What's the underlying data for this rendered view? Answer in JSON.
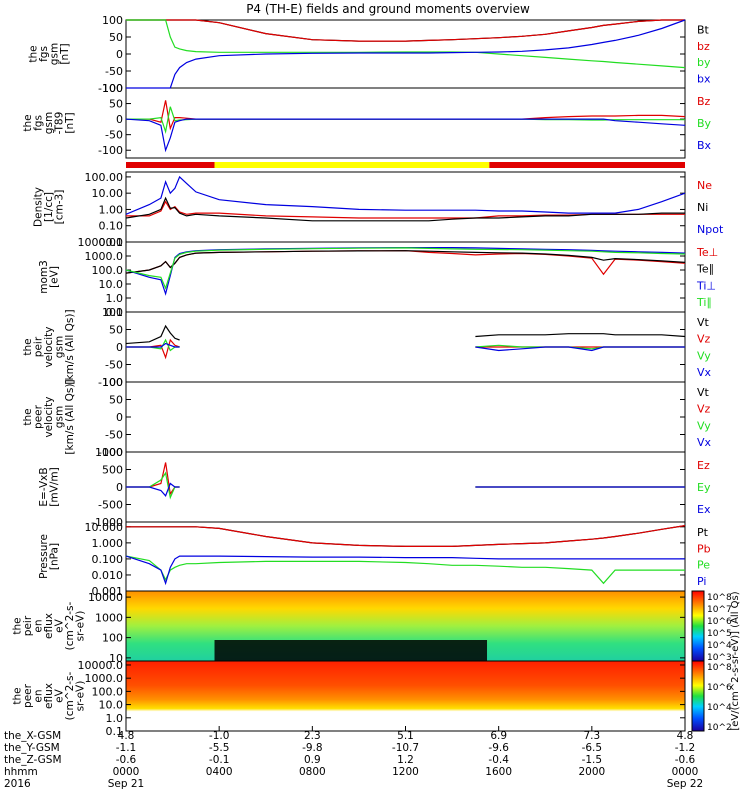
{
  "title": "P4 (TH-E) fields and ground moments overview",
  "colors": {
    "black": "#000000",
    "red": "#e00000",
    "green": "#22dd22",
    "blue": "#0000e0",
    "yellow": "#ffff00"
  },
  "panels": [
    {
      "id": "fgs-gsm",
      "ylabel": [
        "the",
        "fgs",
        "gsm",
        "[nT]"
      ],
      "ytick_labels": [
        "100",
        "50",
        "0",
        "-50",
        "-100"
      ],
      "legend": [
        {
          "text": "Bt",
          "color": "black"
        },
        {
          "text": "bz",
          "color": "red"
        },
        {
          "text": "by",
          "color": "green"
        },
        {
          "text": "bx",
          "color": "blue"
        }
      ]
    },
    {
      "id": "fgs-dgsm",
      "ylabel": [
        "the",
        "fgs",
        "gsm",
        "-T89",
        "[nT]"
      ],
      "ytick_labels": [
        "100",
        "50",
        "0",
        "-50",
        "-100"
      ],
      "legend": [
        {
          "text": "Bz",
          "color": "red"
        },
        {
          "text": "By",
          "color": "green"
        },
        {
          "text": "Bx",
          "color": "blue"
        }
      ]
    },
    {
      "id": "density",
      "ylabel": [
        "Density",
        "[1/cc]",
        "[cm-3]"
      ],
      "ytick_labels": [
        "100.00",
        "10.00",
        "1.00",
        "0.10",
        "0.01"
      ],
      "legend": [
        {
          "text": "Ne",
          "color": "red"
        },
        {
          "text": "Ni",
          "color": "black"
        },
        {
          "text": "Npot",
          "color": "blue"
        }
      ]
    },
    {
      "id": "temperature",
      "ylabel": [
        "mom3",
        "[eV]"
      ],
      "ytick_labels": [
        "10000.0",
        "1000.0",
        "100.0",
        "10.0",
        "1.0",
        "0.1"
      ],
      "legend": [
        {
          "text": "Te⊥",
          "color": "red"
        },
        {
          "text": "Te∥",
          "color": "black"
        },
        {
          "text": "Ti⊥",
          "color": "blue"
        },
        {
          "text": "Ti∥",
          "color": "green"
        }
      ]
    },
    {
      "id": "peir-velocity",
      "ylabel": [
        "the",
        "peir",
        "velocity",
        "gsm",
        "[km/s (All Qs)]"
      ],
      "ytick_labels": [
        "100",
        "50",
        "0",
        "-50",
        "-100"
      ],
      "legend": [
        {
          "text": "Vt",
          "color": "black"
        },
        {
          "text": "Vz",
          "color": "red"
        },
        {
          "text": "Vy",
          "color": "green"
        },
        {
          "text": "Vx",
          "color": "blue"
        }
      ]
    },
    {
      "id": "peer-velocity",
      "ylabel": [
        "the",
        "peer",
        "velocity",
        "gsm",
        "[km/s (All Qs)]"
      ],
      "ytick_labels": [
        "100",
        "50",
        "0",
        "-50",
        "-100"
      ],
      "legend": [
        {
          "text": "Vt",
          "color": "black"
        },
        {
          "text": "Vz",
          "color": "red"
        },
        {
          "text": "Vy",
          "color": "green"
        },
        {
          "text": "Vx",
          "color": "blue"
        }
      ]
    },
    {
      "id": "efield",
      "ylabel": [
        "E=-VxB",
        "[mV/m]"
      ],
      "ytick_labels": [
        "1000",
        "500",
        "0",
        "-500",
        "-1000"
      ],
      "legend": [
        {
          "text": "Ez",
          "color": "red"
        },
        {
          "text": "Ey",
          "color": "green"
        },
        {
          "text": "Ex",
          "color": "blue"
        }
      ]
    },
    {
      "id": "pressure",
      "ylabel": [
        "Pressure",
        "[nPa]"
      ],
      "ytick_labels": [
        "10.000",
        "1.000",
        "0.100",
        "0.010",
        "0.001"
      ],
      "legend": [
        {
          "text": "Pt",
          "color": "black"
        },
        {
          "text": "Pb",
          "color": "red"
        },
        {
          "text": "Pe",
          "color": "green"
        },
        {
          "text": "Pi",
          "color": "blue"
        }
      ]
    },
    {
      "id": "peir-spec",
      "ylabel": [
        "the",
        "peir",
        "en",
        "eflux",
        "eV",
        "(cm^2-s-",
        "sr-eV)"
      ],
      "ytick_labels": [
        "10000",
        "1000",
        "100",
        "10"
      ]
    },
    {
      "id": "peer-spec",
      "ylabel": [
        "the",
        "peer",
        "en",
        "eflux",
        "eV",
        "(cm^2-s-",
        "sr-eV)"
      ],
      "ytick_labels": [
        "10000.0",
        "1000.0",
        "100.0",
        "10.0",
        "1.0",
        "0.1"
      ]
    }
  ],
  "colorbars": [
    {
      "ticks": [
        "10^8",
        "10^7",
        "10^6",
        "10^5",
        "10^4",
        "10^3"
      ]
    },
    {
      "ticks": [
        "10^8",
        "10^6",
        "10^4",
        "10^2"
      ]
    }
  ],
  "colorbar_label": "[eV/(cm^2-s-sr-eV)] (All Qs)",
  "xaxis": {
    "row_labels": [
      "the_X-GSM",
      "the_Y-GSM",
      "the_Z-GSM",
      "hhmm",
      "2016"
    ],
    "columns": [
      {
        "x": "4.8",
        "y": "-1.1",
        "z": "-0.6",
        "t": "0000",
        "d": "Sep 21"
      },
      {
        "x": "-1.0",
        "y": "-5.5",
        "z": "-0.1",
        "t": "0400",
        "d": ""
      },
      {
        "x": "2.3",
        "y": "-9.8",
        "z": "0.9",
        "t": "0800",
        "d": ""
      },
      {
        "x": "5.1",
        "y": "-10.7",
        "z": "1.2",
        "t": "1200",
        "d": ""
      },
      {
        "x": "6.9",
        "y": "-9.6",
        "z": "-0.4",
        "t": "1600",
        "d": ""
      },
      {
        "x": "7.3",
        "y": "-6.5",
        "z": "-1.5",
        "t": "2000",
        "d": ""
      },
      {
        "x": "4.8",
        "y": "-1.2",
        "z": "-0.6",
        "t": "0000",
        "d": "Sep 22"
      }
    ]
  },
  "chart_data": {
    "type": "line",
    "x_hours": [
      0,
      1,
      1.5,
      1.7,
      1.9,
      2.1,
      2.3,
      2.6,
      3,
      4,
      6,
      8,
      10,
      12,
      13,
      14,
      15,
      16,
      17,
      18,
      19,
      20,
      20.5,
      21,
      22,
      23,
      24
    ],
    "series": [
      {
        "panel": "fgs-gsm",
        "name": "Bt",
        "color": "black",
        "y": [
          100,
          100,
          100,
          100,
          100,
          100,
          100,
          100,
          100,
          92,
          60,
          42,
          38,
          38,
          40,
          42,
          45,
          48,
          52,
          58,
          68,
          78,
          84,
          88,
          96,
          100,
          100
        ]
      },
      {
        "panel": "fgs-gsm",
        "name": "bz",
        "color": "red",
        "y": [
          100,
          100,
          100,
          100,
          100,
          100,
          100,
          100,
          100,
          92,
          60,
          42,
          38,
          38,
          40,
          42,
          45,
          48,
          52,
          58,
          68,
          78,
          84,
          88,
          96,
          100,
          100
        ]
      },
      {
        "panel": "fgs-gsm",
        "name": "by",
        "color": "green",
        "y": [
          100,
          100,
          100,
          100,
          50,
          20,
          15,
          10,
          7,
          5,
          5,
          5,
          5,
          6,
          6,
          6,
          5,
          0,
          -5,
          -10,
          -15,
          -20,
          -22,
          -25,
          -30,
          -35,
          -40
        ]
      },
      {
        "panel": "fgs-gsm",
        "name": "bx",
        "color": "blue",
        "y": [
          -100,
          -100,
          -100,
          -100,
          -100,
          -60,
          -40,
          -25,
          -15,
          -5,
          0,
          2,
          3,
          3,
          3,
          4,
          5,
          6,
          8,
          12,
          18,
          28,
          34,
          40,
          55,
          75,
          100
        ]
      },
      {
        "panel": "fgs-dgsm",
        "name": "Bz",
        "color": "red",
        "y": [
          0,
          0,
          -10,
          60,
          -30,
          5,
          5,
          3,
          0,
          0,
          0,
          0,
          0,
          0,
          0,
          0,
          0,
          0,
          0,
          5,
          8,
          10,
          10,
          10,
          12,
          12,
          8
        ]
      },
      {
        "panel": "fgs-dgsm",
        "name": "By",
        "color": "green",
        "y": [
          0,
          0,
          5,
          -40,
          40,
          -5,
          -3,
          -2,
          0,
          0,
          0,
          0,
          0,
          0,
          0,
          0,
          0,
          0,
          0,
          -2,
          -2,
          -3,
          -3,
          -2,
          -2,
          -2,
          -2
        ]
      },
      {
        "panel": "fgs-dgsm",
        "name": "Bx",
        "color": "blue",
        "y": [
          0,
          -5,
          -20,
          -100,
          -60,
          -10,
          -5,
          0,
          0,
          0,
          0,
          0,
          0,
          0,
          0,
          0,
          0,
          0,
          0,
          0,
          0,
          0,
          0,
          -5,
          -10,
          -15,
          -20
        ]
      },
      {
        "panel": "density",
        "name": "Ne",
        "color": "red",
        "y": [
          0.4,
          0.4,
          0.8,
          3,
          1,
          1.5,
          0.7,
          0.5,
          0.6,
          0.6,
          0.4,
          0.35,
          0.3,
          0.3,
          0.3,
          0.3,
          0.3,
          0.4,
          0.4,
          0.45,
          0.45,
          0.5,
          0.5,
          0.5,
          0.5,
          0.5,
          0.5
        ]
      },
      {
        "panel": "density",
        "name": "Ni",
        "color": "black",
        "y": [
          0.3,
          0.5,
          1,
          5,
          1.2,
          1.3,
          0.6,
          0.4,
          0.5,
          0.4,
          0.3,
          0.2,
          0.2,
          0.2,
          0.2,
          0.25,
          0.3,
          0.3,
          0.35,
          0.4,
          0.4,
          0.5,
          0.5,
          0.5,
          0.5,
          0.6,
          0.6
        ]
      },
      {
        "panel": "density",
        "name": "Npot",
        "color": "blue",
        "y": [
          0.5,
          2,
          5,
          50,
          10,
          20,
          100,
          40,
          12,
          4,
          2,
          1.5,
          1,
          0.9,
          0.9,
          0.9,
          0.9,
          0.8,
          0.8,
          0.7,
          0.6,
          0.6,
          0.6,
          0.6,
          1,
          3,
          10
        ]
      },
      {
        "panel": "temperature",
        "name": "Te⊥",
        "color": "red",
        "y": [
          60,
          100,
          200,
          400,
          150,
          300,
          800,
          1200,
          1600,
          1800,
          2000,
          2200,
          2300,
          2400,
          1800,
          1500,
          1200,
          1400,
          1500,
          1300,
          1000,
          700,
          50,
          600,
          500,
          400,
          300
        ]
      },
      {
        "panel": "temperature",
        "name": "Te∥",
        "color": "black",
        "y": [
          60,
          100,
          200,
          400,
          150,
          300,
          800,
          1200,
          1600,
          1800,
          2000,
          2200,
          2300,
          2400,
          2200,
          2000,
          1800,
          1700,
          1600,
          1400,
          1100,
          800,
          500,
          650,
          550,
          450,
          350
        ]
      },
      {
        "panel": "temperature",
        "name": "Ti⊥",
        "color": "blue",
        "y": [
          100,
          30,
          20,
          2,
          40,
          800,
          1500,
          2000,
          2400,
          2800,
          3200,
          3500,
          3800,
          4000,
          4000,
          4000,
          3800,
          3500,
          3200,
          3000,
          2800,
          2500,
          2300,
          2200,
          2000,
          1800,
          1600
        ]
      },
      {
        "panel": "temperature",
        "name": "Ti∥",
        "color": "green",
        "y": [
          100,
          40,
          30,
          5,
          60,
          700,
          1300,
          1800,
          2200,
          2600,
          3000,
          3300,
          3600,
          3800,
          3500,
          3200,
          3000,
          2900,
          2800,
          2600,
          2400,
          2200,
          2000,
          1800,
          1700,
          1500,
          1400
        ]
      },
      {
        "panel": "peir-velocity",
        "name": "Vt",
        "color": "black",
        "y": [
          10,
          15,
          30,
          60,
          40,
          25,
          20,
          null,
          null,
          null,
          null,
          null,
          null,
          null,
          null,
          null,
          30,
          35,
          35,
          35,
          38,
          38,
          38,
          35,
          35,
          35,
          30
        ]
      },
      {
        "panel": "peir-velocity",
        "name": "Vz",
        "color": "red",
        "y": [
          0,
          0,
          5,
          -30,
          20,
          5,
          0,
          null,
          null,
          null,
          null,
          null,
          null,
          null,
          null,
          null,
          0,
          0,
          0,
          0,
          0,
          0,
          0,
          0,
          0,
          0,
          0
        ]
      },
      {
        "panel": "peir-velocity",
        "name": "Vy",
        "color": "green",
        "y": [
          0,
          0,
          -5,
          20,
          -10,
          0,
          0,
          null,
          null,
          null,
          null,
          null,
          null,
          null,
          null,
          null,
          0,
          5,
          0,
          0,
          0,
          -5,
          0,
          0,
          0,
          0,
          0
        ]
      },
      {
        "panel": "peir-velocity",
        "name": "Vx",
        "color": "blue",
        "y": [
          0,
          0,
          0,
          10,
          5,
          0,
          0,
          null,
          null,
          null,
          null,
          null,
          null,
          null,
          null,
          null,
          0,
          -10,
          -5,
          0,
          0,
          -10,
          0,
          0,
          0,
          0,
          0
        ]
      },
      {
        "panel": "efield",
        "name": "Ez",
        "color": "red",
        "y": [
          0,
          0,
          100,
          700,
          -200,
          0,
          0,
          null,
          null,
          null,
          null,
          null,
          null,
          null,
          null,
          null,
          0,
          0,
          0,
          0,
          0,
          0,
          0,
          0,
          0,
          0,
          0
        ]
      },
      {
        "panel": "efield",
        "name": "Ey",
        "color": "green",
        "y": [
          0,
          0,
          200,
          400,
          -300,
          0,
          0,
          null,
          null,
          null,
          null,
          null,
          null,
          null,
          null,
          null,
          0,
          0,
          0,
          0,
          0,
          0,
          0,
          0,
          0,
          0,
          0
        ]
      },
      {
        "panel": "efield",
        "name": "Ex",
        "color": "blue",
        "y": [
          0,
          0,
          -100,
          -250,
          100,
          0,
          0,
          null,
          null,
          null,
          null,
          null,
          null,
          null,
          null,
          null,
          0,
          0,
          0,
          0,
          0,
          0,
          0,
          0,
          0,
          0,
          0
        ]
      },
      {
        "panel": "pressure",
        "name": "Pt",
        "color": "black",
        "y": [
          10,
          10,
          10,
          10,
          10,
          10,
          10,
          10,
          10,
          8,
          2.5,
          1,
          0.7,
          0.6,
          0.6,
          0.6,
          0.7,
          0.8,
          0.9,
          1,
          1.3,
          1.7,
          2,
          2.5,
          4,
          7,
          12
        ]
      },
      {
        "panel": "pressure",
        "name": "Pb",
        "color": "red",
        "y": [
          10,
          10,
          10,
          10,
          10,
          10,
          10,
          10,
          10,
          8,
          2.5,
          1,
          0.7,
          0.6,
          0.6,
          0.6,
          0.7,
          0.8,
          0.9,
          1,
          1.3,
          1.7,
          2,
          2.5,
          4,
          7,
          12
        ]
      },
      {
        "panel": "pressure",
        "name": "Pe",
        "color": "green",
        "y": [
          0.15,
          0.08,
          0.02,
          0.005,
          0.02,
          0.03,
          0.04,
          0.05,
          0.05,
          0.06,
          0.07,
          0.07,
          0.07,
          0.06,
          0.05,
          0.04,
          0.04,
          0.035,
          0.03,
          0.03,
          0.025,
          0.02,
          0.003,
          0.02,
          0.02,
          0.02,
          0.02
        ]
      },
      {
        "panel": "pressure",
        "name": "Pi",
        "color": "blue",
        "y": [
          0.15,
          0.05,
          0.02,
          0.003,
          0.03,
          0.1,
          0.15,
          0.15,
          0.15,
          0.15,
          0.14,
          0.13,
          0.13,
          0.12,
          0.12,
          0.12,
          0.11,
          0.1,
          0.1,
          0.1,
          0.1,
          0.1,
          0.1,
          0.1,
          0.1,
          0.1,
          0.1
        ]
      }
    ],
    "mode_bar": [
      {
        "from_hour": 0,
        "to_hour": 3.8,
        "color": "red"
      },
      {
        "from_hour": 3.8,
        "to_hour": 15.6,
        "color": "yellow"
      },
      {
        "from_hour": 15.6,
        "to_hour": 24,
        "color": "red"
      }
    ]
  }
}
